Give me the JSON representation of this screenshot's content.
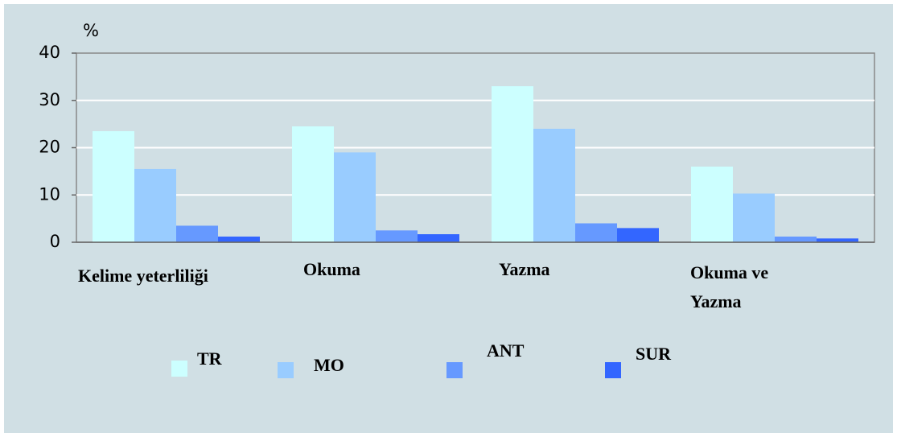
{
  "chart_data": {
    "type": "bar",
    "y_axis_label": "%",
    "categories": [
      "Kelime yeterliliği",
      "Okuma",
      "Yazma",
      "Okuma ve Yazma"
    ],
    "series": [
      {
        "name": "TR",
        "color": "#ccffff",
        "values": [
          23.5,
          24.5,
          33,
          16
        ]
      },
      {
        "name": "MO",
        "color": "#99ccff",
        "values": [
          15.5,
          19,
          24,
          10.3
        ]
      },
      {
        "name": "ANT",
        "color": "#6699ff",
        "values": [
          3.5,
          2.5,
          4,
          1.2
        ]
      },
      {
        "name": "SUR",
        "color": "#3366ff",
        "values": [
          1.2,
          1.7,
          3,
          0.8
        ]
      }
    ],
    "ylim": [
      0,
      40
    ],
    "yticks": [
      0,
      10,
      20,
      30,
      40
    ],
    "grid": true
  }
}
